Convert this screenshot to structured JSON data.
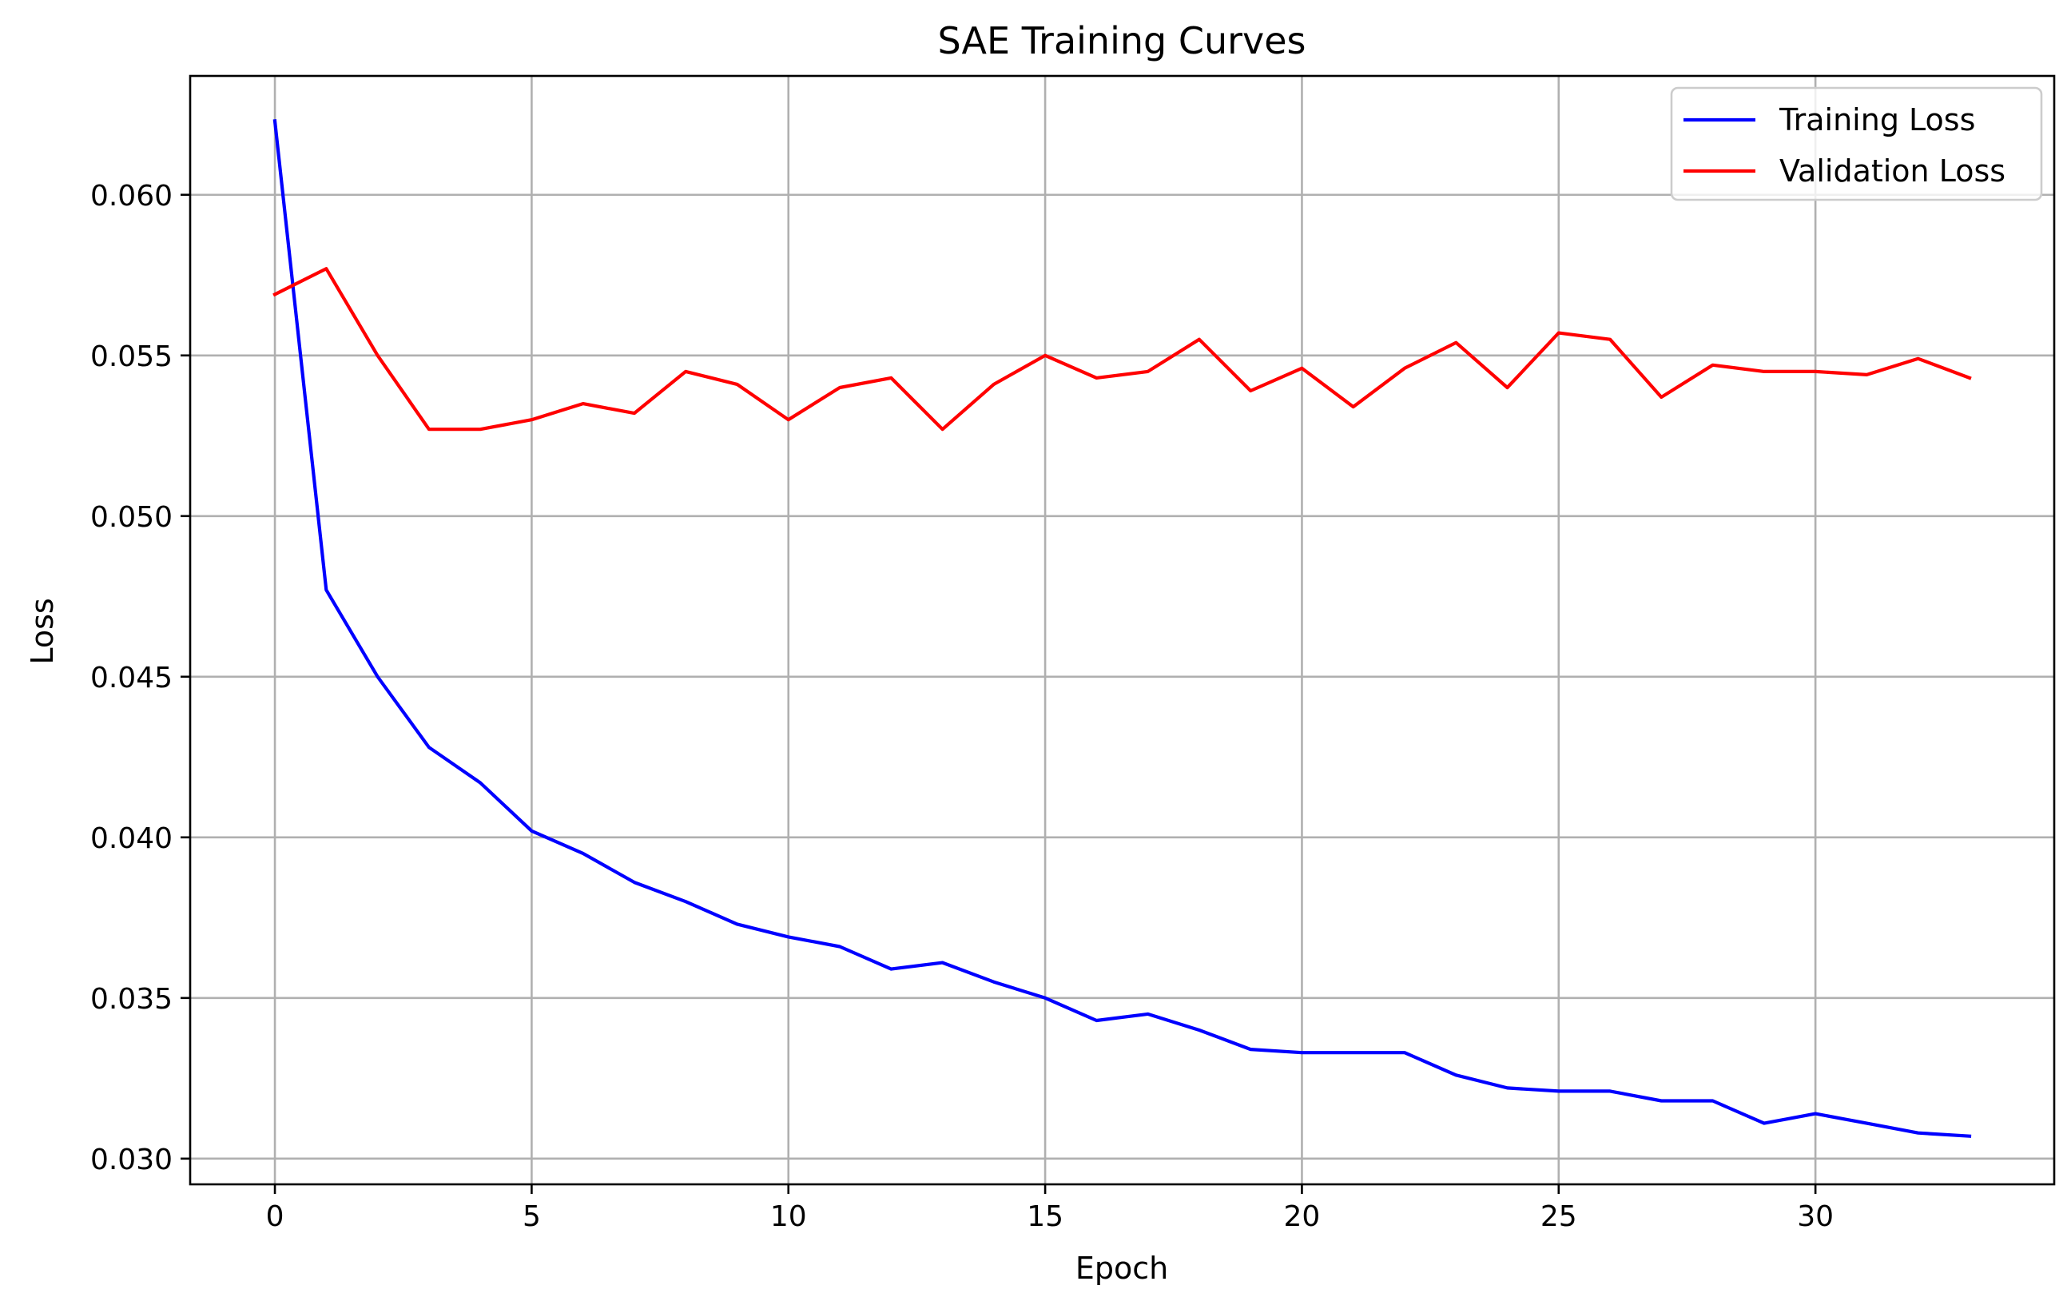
{
  "chart_data": {
    "type": "line",
    "title": "SAE Training Curves",
    "xlabel": "Epoch",
    "ylabel": "Loss",
    "xlim": [
      -1.65,
      34.65
    ],
    "ylim": [
      0.0292,
      0.0637
    ],
    "xticks": [
      0,
      5,
      10,
      15,
      20,
      25,
      30
    ],
    "yticks": [
      0.03,
      0.035,
      0.04,
      0.045,
      0.05,
      0.055,
      0.06
    ],
    "xtick_labels": [
      "0",
      "5",
      "10",
      "15",
      "20",
      "25",
      "30"
    ],
    "ytick_labels": [
      "0.030",
      "0.035",
      "0.040",
      "0.045",
      "0.050",
      "0.055",
      "0.060"
    ],
    "grid": true,
    "legend_position": "top-right",
    "x": [
      0,
      1,
      2,
      3,
      4,
      5,
      6,
      7,
      8,
      9,
      10,
      11,
      12,
      13,
      14,
      15,
      16,
      17,
      18,
      19,
      20,
      21,
      22,
      23,
      24,
      25,
      26,
      27,
      28,
      29,
      30,
      31,
      32,
      33
    ],
    "series": [
      {
        "name": "Training Loss",
        "color": "#0000ff",
        "values": [
          0.0623,
          0.0477,
          0.045,
          0.0428,
          0.0417,
          0.0402,
          0.0395,
          0.0386,
          0.038,
          0.0373,
          0.0369,
          0.0366,
          0.0359,
          0.0361,
          0.0355,
          0.035,
          0.0343,
          0.0345,
          0.034,
          0.0334,
          0.0333,
          0.0333,
          0.0333,
          0.0326,
          0.0322,
          0.0321,
          0.0321,
          0.0318,
          0.0318,
          0.0311,
          0.0314,
          0.0311,
          0.0308,
          0.0307
        ]
      },
      {
        "name": "Validation Loss",
        "color": "#ff0000",
        "values": [
          0.0569,
          0.0577,
          0.055,
          0.0527,
          0.0527,
          0.053,
          0.0535,
          0.0532,
          0.0545,
          0.0541,
          0.053,
          0.054,
          0.0543,
          0.0527,
          0.0541,
          0.055,
          0.0543,
          0.0545,
          0.0555,
          0.0539,
          0.0546,
          0.0534,
          0.0546,
          0.0554,
          0.054,
          0.0557,
          0.0555,
          0.0537,
          0.0547,
          0.0545,
          0.0545,
          0.0544,
          0.0549,
          0.0543
        ]
      }
    ]
  }
}
